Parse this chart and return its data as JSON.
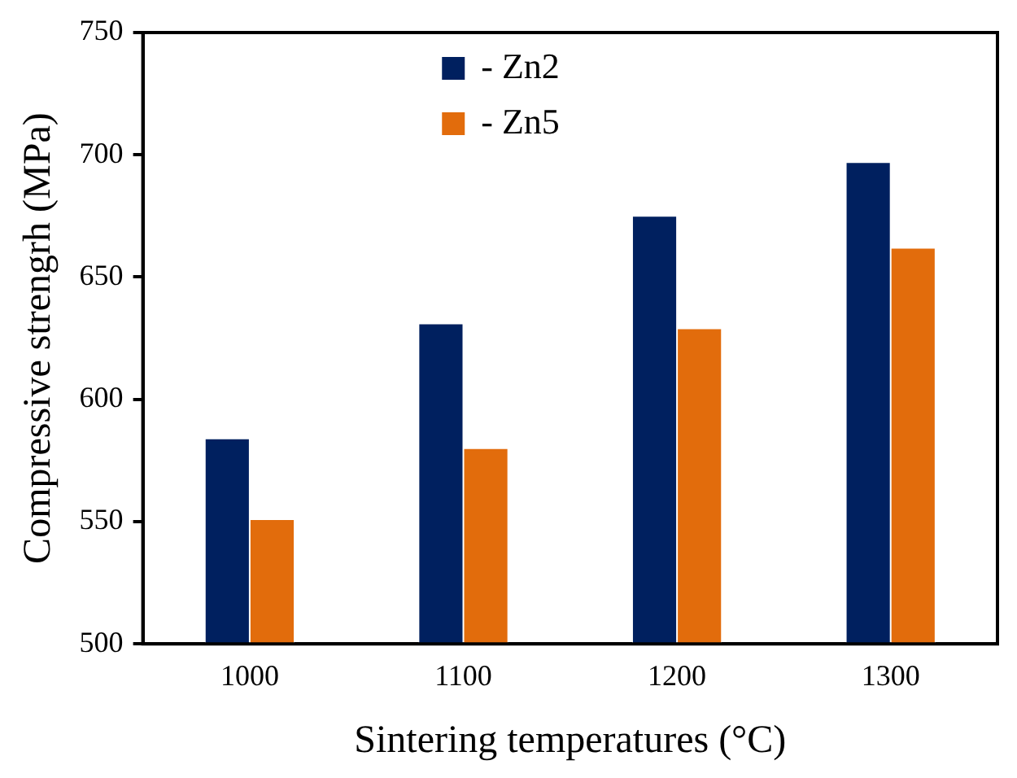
{
  "chart_data": {
    "type": "bar",
    "xlabel": "Sintering temperatures (°C)",
    "ylabel": "Compressive strengrh (MPa)",
    "categories": [
      "1000",
      "1100",
      "1200",
      "1300"
    ],
    "series": [
      {
        "name": "- Zn2",
        "color": "#00205f",
        "values": [
          584,
          631,
          675,
          697
        ]
      },
      {
        "name": "- Zn5",
        "color": "#e26c0c",
        "values": [
          551,
          580,
          629,
          662
        ]
      }
    ],
    "ylim": [
      500,
      750
    ],
    "yticks": [
      500,
      550,
      600,
      650,
      700,
      750
    ],
    "grid": false,
    "legend": "top"
  }
}
